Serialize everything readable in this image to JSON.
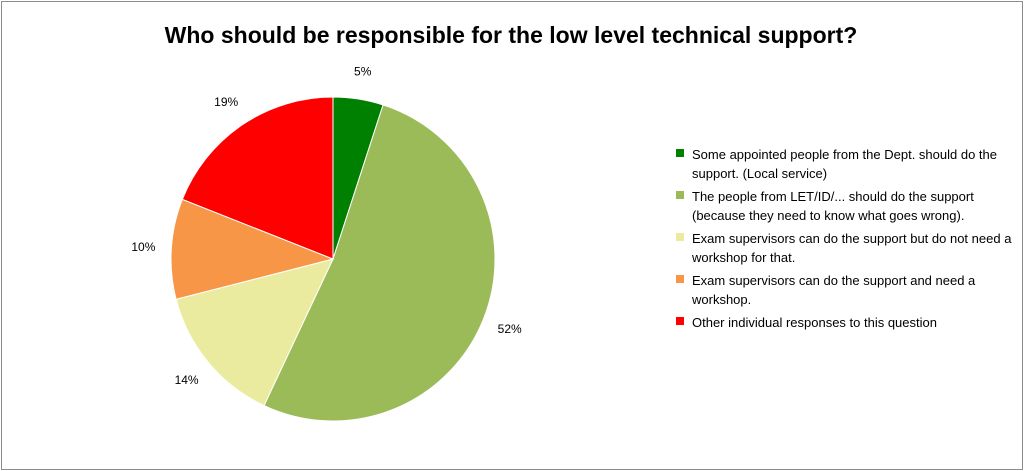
{
  "colors": {
    "border": "#8c8c8c",
    "slice_outline": "#ffffff"
  },
  "chart_data": {
    "type": "pie",
    "title": "Who should be responsible for the low level technical support?",
    "legend_position": "right",
    "slices": [
      {
        "label": "Some appointed people from the Dept. should do the support. (Local service)",
        "value": 5,
        "display": "5%",
        "color": "#008000"
      },
      {
        "label": "The people from LET/ID/... should do the support (because they need to know what goes wrong).",
        "value": 52,
        "display": "52%",
        "color": "#9bbb59"
      },
      {
        "label": "Exam supervisors can do the support but do not need a workshop for that.",
        "value": 14,
        "display": "14%",
        "color": "#ebeba0"
      },
      {
        "label": "Exam supervisors can do the support and need a workshop.",
        "value": 10,
        "display": "10%",
        "color": "#f79646"
      },
      {
        "label": "Other individual responses to this question",
        "value": 19,
        "display": "19%",
        "color": "#ff0000"
      }
    ]
  }
}
